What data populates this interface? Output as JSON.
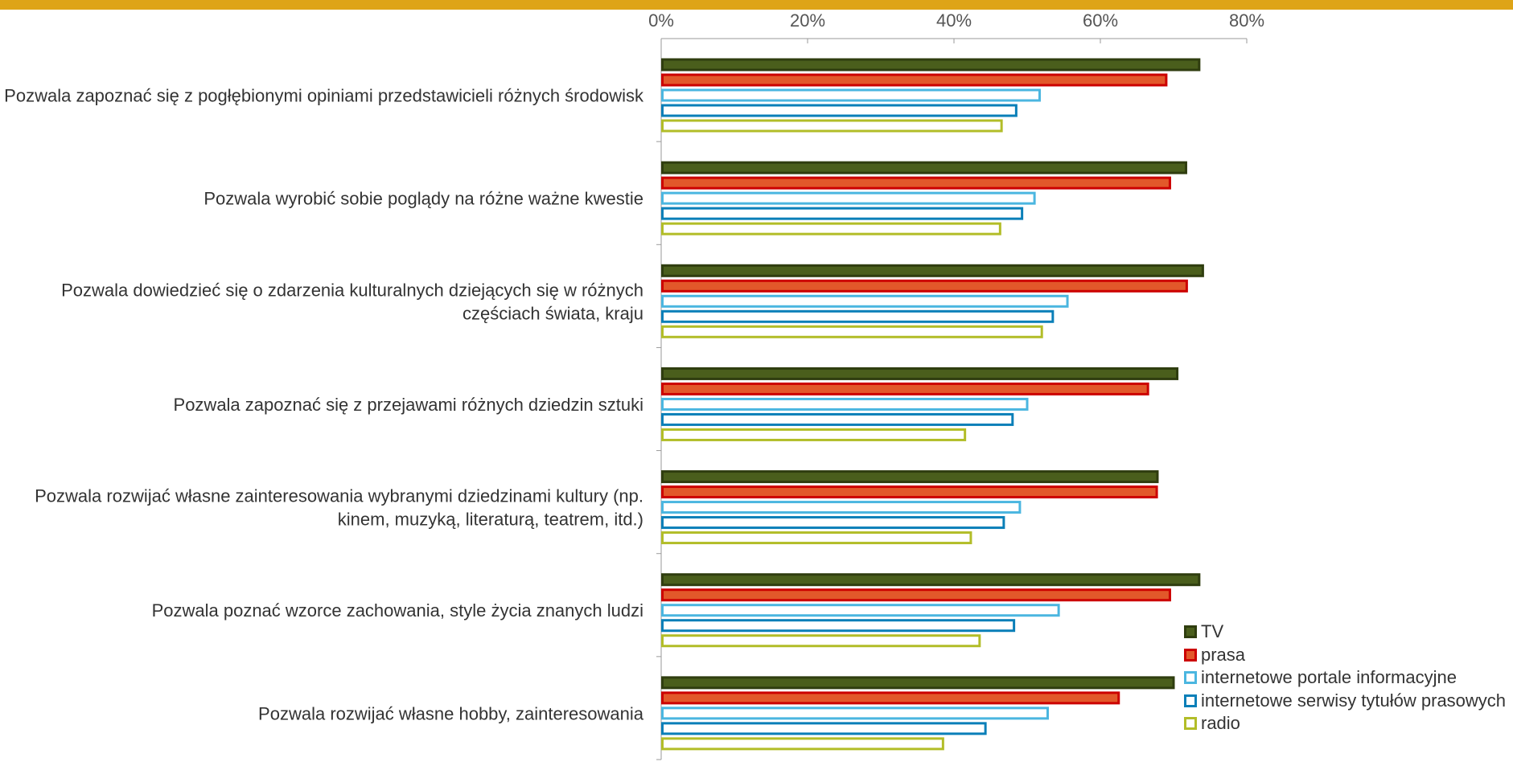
{
  "chart_data": {
    "type": "bar",
    "orientation": "horizontal",
    "title": "",
    "xlabel": "",
    "ylabel": "",
    "xlim": [
      0,
      80
    ],
    "ticks": [
      0,
      20,
      40,
      60,
      80
    ],
    "tick_labels": [
      "0%",
      "20%",
      "40%",
      "60%",
      "80%"
    ],
    "grid": false,
    "legend_position": "bottom-right",
    "categories": [
      [
        "Pozwala zapoznać się z pogłębionymi opiniami przedstawicieli różnych środowisk"
      ],
      [
        "Pozwala wyrobić sobie poglądy na różne ważne kwestie"
      ],
      [
        "Pozwala dowiedzieć się o zdarzenia kulturalnych dziejących się w różnych",
        "częściach świata, kraju"
      ],
      [
        "Pozwala zapoznać się z przejawami różnych dziedzin sztuki"
      ],
      [
        "Pozwala rozwijać własne zainteresowania wybranymi dziedzinami kultury (np.",
        "kinem, muzyką, literaturą, teatrem, itd.)"
      ],
      [
        "Pozwala poznać wzorce zachowania, style życia znanych ludzi"
      ],
      [
        "Pozwala rozwijać własne hobby, zainteresowania"
      ]
    ],
    "series": [
      {
        "name": "TV",
        "fill": "#4a5e1c",
        "stroke": "#2f3d0f",
        "filled": true,
        "values": [
          73.5,
          71.7,
          74.0,
          70.5,
          67.8,
          73.5,
          70.0
        ]
      },
      {
        "name": "prasa",
        "fill": "#e2582a",
        "stroke": "#cc0000",
        "filled": true,
        "values": [
          69.0,
          69.5,
          71.8,
          66.5,
          67.7,
          69.5,
          62.5
        ]
      },
      {
        "name": "internetowe portale informacyjne",
        "fill": "#ffffff",
        "stroke": "#4bb6e0",
        "filled": false,
        "values": [
          51.7,
          51.0,
          55.5,
          50.0,
          49.0,
          54.3,
          52.8
        ]
      },
      {
        "name": "internetowe serwisy tytułów prasowych",
        "fill": "#ffffff",
        "stroke": "#0a7fb8",
        "filled": false,
        "values": [
          48.5,
          49.3,
          53.5,
          48.0,
          46.8,
          48.2,
          44.3
        ]
      },
      {
        "name": "radio",
        "fill": "#ffffff",
        "stroke": "#b2bd28",
        "filled": false,
        "values": [
          46.5,
          46.3,
          52.0,
          41.5,
          42.3,
          43.5,
          38.5
        ]
      }
    ]
  }
}
